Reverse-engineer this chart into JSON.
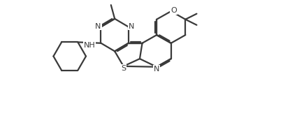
{
  "background_color": "#ffffff",
  "line_color": "#3a3a3a",
  "line_width": 1.6,
  "fig_width": 4.25,
  "fig_height": 1.79,
  "dpi": 100,
  "xlim": [
    0,
    17
  ],
  "ylim": [
    0,
    10
  ]
}
